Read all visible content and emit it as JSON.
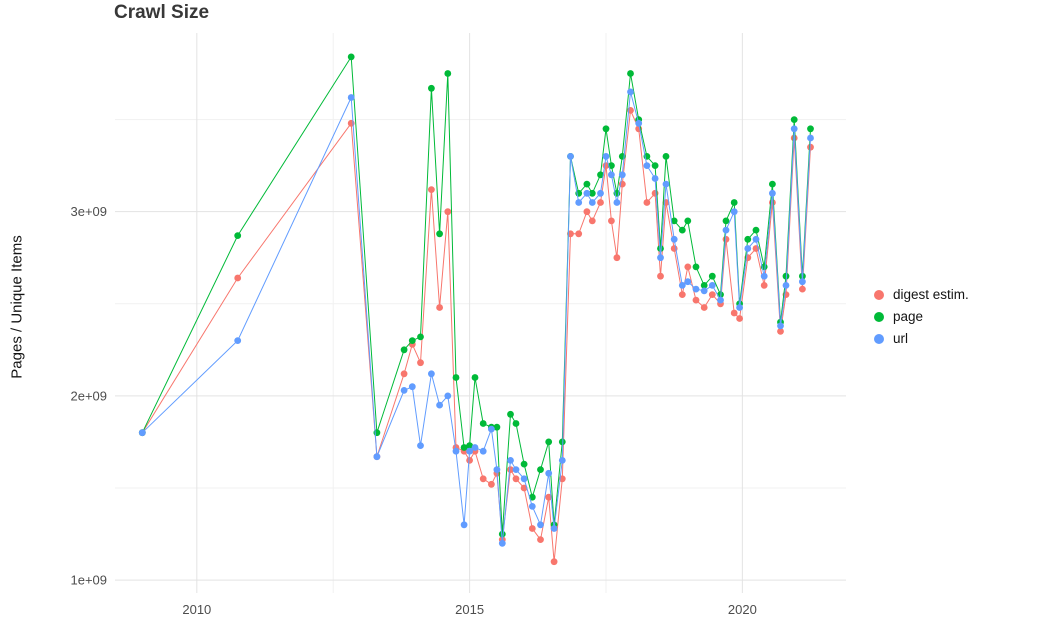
{
  "title": "Crawl Size",
  "y_axis_label": "Pages / Unique Items",
  "legend": {
    "items": [
      {
        "label": "digest estim.",
        "color": "#F8766D"
      },
      {
        "label": "page",
        "color": "#00BA38"
      },
      {
        "label": "url",
        "color": "#619CFF"
      }
    ]
  },
  "colors": {
    "background": "#ffffff",
    "grid_major": "#e3e3e3",
    "grid_minor": "#f1f1f1",
    "tick_text": "#4d4d4d",
    "digest": "#F8766D",
    "page": "#00BA38",
    "url": "#619CFF"
  },
  "chart_data": {
    "type": "line",
    "title": "Crawl Size",
    "xlabel": "",
    "ylabel": "Pages / Unique Items",
    "unit": "values in units of 1e+09 pages/items",
    "grid": true,
    "legend_position": "right",
    "xlim": [
      2008.5,
      2021.9
    ],
    "ylim": [
      0.93,
      3.97
    ],
    "x_ticks": [
      {
        "value": 2010,
        "label": "2010"
      },
      {
        "value": 2015,
        "label": "2015"
      },
      {
        "value": 2020,
        "label": "2020"
      }
    ],
    "y_ticks": [
      {
        "value": 1,
        "label": "1e+09"
      },
      {
        "value": 2,
        "label": "2e+09"
      },
      {
        "value": 3,
        "label": "3e+09"
      }
    ],
    "x_minor": [
      2012.5,
      2017.5
    ],
    "y_minor": [
      1.5,
      2.5,
      3.5
    ],
    "x": [
      2009.0,
      2010.75,
      2012.83,
      2013.3,
      2013.8,
      2013.95,
      2014.1,
      2014.3,
      2014.45,
      2014.6,
      2014.75,
      2014.9,
      2015.0,
      2015.1,
      2015.25,
      2015.4,
      2015.5,
      2015.6,
      2015.75,
      2015.85,
      2016.0,
      2016.15,
      2016.3,
      2016.45,
      2016.55,
      2016.7,
      2016.85,
      2017.0,
      2017.15,
      2017.25,
      2017.4,
      2017.5,
      2017.6,
      2017.7,
      2017.8,
      2017.95,
      2018.1,
      2018.25,
      2018.4,
      2018.5,
      2018.6,
      2018.75,
      2018.9,
      2019.0,
      2019.15,
      2019.3,
      2019.45,
      2019.6,
      2019.7,
      2019.85,
      2019.95,
      2020.1,
      2020.25,
      2020.4,
      2020.55,
      2020.7,
      2020.8,
      2020.95,
      2021.1,
      2021.25
    ],
    "series": [
      {
        "name": "digest estim.",
        "color": "#F8766D",
        "values": [
          1.8,
          2.64,
          3.48,
          1.67,
          2.12,
          2.28,
          2.18,
          3.12,
          2.48,
          3.0,
          1.72,
          1.7,
          1.65,
          1.7,
          1.55,
          1.52,
          1.58,
          1.22,
          1.6,
          1.55,
          1.5,
          1.28,
          1.22,
          1.45,
          1.1,
          1.55,
          2.88,
          2.88,
          3.0,
          2.95,
          3.05,
          3.25,
          2.95,
          2.75,
          3.15,
          3.55,
          3.45,
          3.05,
          3.1,
          2.65,
          3.05,
          2.8,
          2.55,
          2.7,
          2.52,
          2.48,
          2.55,
          2.5,
          2.85,
          2.45,
          2.42,
          2.75,
          2.8,
          2.6,
          3.05,
          2.35,
          2.55,
          3.4,
          2.58,
          3.35
        ]
      },
      {
        "name": "page",
        "color": "#00BA38",
        "values": [
          1.8,
          2.87,
          3.84,
          1.8,
          2.25,
          2.3,
          2.32,
          3.67,
          2.88,
          3.75,
          2.1,
          1.72,
          1.73,
          2.1,
          1.85,
          1.83,
          1.83,
          1.25,
          1.9,
          1.85,
          1.63,
          1.45,
          1.6,
          1.75,
          1.3,
          1.75,
          3.3,
          3.1,
          3.15,
          3.1,
          3.2,
          3.45,
          3.25,
          3.1,
          3.3,
          3.75,
          3.5,
          3.3,
          3.25,
          2.8,
          3.3,
          2.95,
          2.9,
          2.95,
          2.7,
          2.6,
          2.65,
          2.55,
          2.95,
          3.05,
          2.5,
          2.85,
          2.9,
          2.7,
          3.15,
          2.4,
          2.65,
          3.5,
          2.65,
          3.45
        ]
      },
      {
        "name": "url",
        "color": "#619CFF",
        "values": [
          1.8,
          2.3,
          3.62,
          1.67,
          2.03,
          2.05,
          1.73,
          2.12,
          1.95,
          2.0,
          1.7,
          1.3,
          1.7,
          1.72,
          1.7,
          1.82,
          1.6,
          1.2,
          1.65,
          1.6,
          1.55,
          1.4,
          1.3,
          1.58,
          1.28,
          1.65,
          3.3,
          3.05,
          3.1,
          3.05,
          3.1,
          3.3,
          3.2,
          3.05,
          3.2,
          3.65,
          3.48,
          3.25,
          3.18,
          2.75,
          3.15,
          2.85,
          2.6,
          2.62,
          2.58,
          2.57,
          2.6,
          2.52,
          2.9,
          3.0,
          2.48,
          2.8,
          2.85,
          2.65,
          3.1,
          2.38,
          2.6,
          3.45,
          2.62,
          3.4
        ]
      }
    ]
  }
}
